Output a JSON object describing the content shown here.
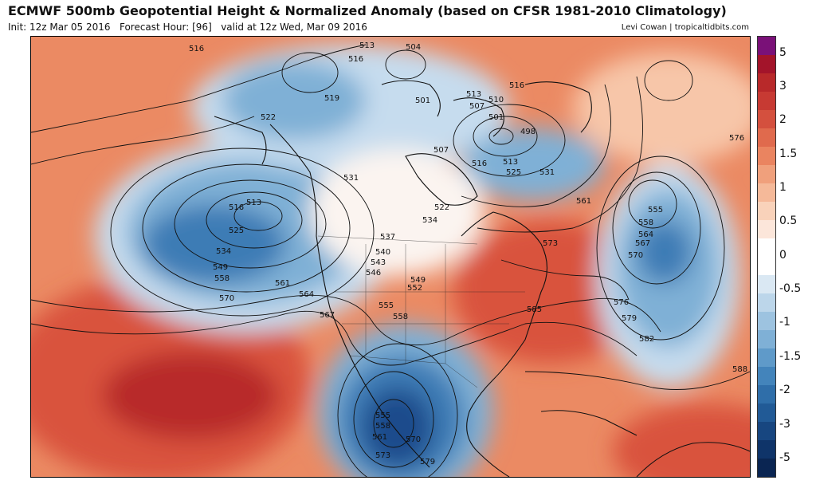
{
  "header": {
    "title": "ECMWF 500mb Geopotential Height & Normalized Anomaly (based on CFSR 1981-2010 Climatology)",
    "init": "Init: 12z Mar 05 2016",
    "forecast_hour": "Forecast Hour: [96]",
    "valid": "valid at 12z Wed, Mar 09 2016",
    "credit": "Levi Cowan | tropicaltidbits.com"
  },
  "colors": {
    "deep_red": "#b8292a",
    "red": "#d9533c",
    "orange": "#eb8a63",
    "light_orange": "#f7c6a9",
    "white": "#fbf4f0",
    "light_blue": "#c6dcee",
    "blue": "#7fb0d6",
    "mid_blue": "#3d7bb5",
    "deep_blue": "#1a4b8c"
  },
  "map": {
    "labels": [
      {
        "text": "516"
      },
      {
        "text": "513"
      },
      {
        "text": "504"
      },
      {
        "text": "516"
      },
      {
        "text": "519"
      },
      {
        "text": "522"
      },
      {
        "text": "501"
      },
      {
        "text": "513"
      },
      {
        "text": "507"
      },
      {
        "text": "510"
      },
      {
        "text": "516"
      },
      {
        "text": "501"
      },
      {
        "text": "498"
      },
      {
        "text": "507"
      },
      {
        "text": "513"
      },
      {
        "text": "516"
      },
      {
        "text": "525"
      },
      {
        "text": "531"
      },
      {
        "text": "531"
      },
      {
        "text": "513"
      },
      {
        "text": "516"
      },
      {
        "text": "525"
      },
      {
        "text": "534"
      },
      {
        "text": "549"
      },
      {
        "text": "558"
      },
      {
        "text": "561"
      },
      {
        "text": "564"
      },
      {
        "text": "567"
      },
      {
        "text": "570"
      },
      {
        "text": "522"
      },
      {
        "text": "534"
      },
      {
        "text": "537"
      },
      {
        "text": "540"
      },
      {
        "text": "543"
      },
      {
        "text": "546"
      },
      {
        "text": "549"
      },
      {
        "text": "552"
      },
      {
        "text": "555"
      },
      {
        "text": "558"
      },
      {
        "text": "561"
      },
      {
        "text": "573"
      },
      {
        "text": "555"
      },
      {
        "text": "558"
      },
      {
        "text": "564"
      },
      {
        "text": "567"
      },
      {
        "text": "570"
      },
      {
        "text": "576"
      },
      {
        "text": "579"
      },
      {
        "text": "582"
      },
      {
        "text": "585"
      },
      {
        "text": "576"
      },
      {
        "text": "588"
      },
      {
        "text": "555"
      },
      {
        "text": "558"
      },
      {
        "text": "561"
      },
      {
        "text": "570"
      },
      {
        "text": "573"
      },
      {
        "text": "579"
      }
    ]
  },
  "colorbar": {
    "segments": [
      {
        "color": "#7a1178"
      },
      {
        "color": "#a3142a"
      },
      {
        "color": "#b8292a"
      },
      {
        "color": "#c73a33"
      },
      {
        "color": "#d4503e"
      },
      {
        "color": "#e06a4d"
      },
      {
        "color": "#ea8460"
      },
      {
        "color": "#f0a07c"
      },
      {
        "color": "#f5b999"
      },
      {
        "color": "#f9d2ba"
      },
      {
        "color": "#fce6da"
      },
      {
        "color": "#ffffff"
      },
      {
        "color": "#ffffff"
      },
      {
        "color": "#dae8f3"
      },
      {
        "color": "#bcd6ea"
      },
      {
        "color": "#9dc3e0"
      },
      {
        "color": "#7fb0d6"
      },
      {
        "color": "#5f9ac9"
      },
      {
        "color": "#4384bb"
      },
      {
        "color": "#2f6ea9"
      },
      {
        "color": "#215a96"
      },
      {
        "color": "#174680"
      },
      {
        "color": "#0f3469"
      },
      {
        "color": "#0a2552"
      }
    ],
    "labels": [
      "5",
      "3",
      "2",
      "1.5",
      "1",
      "0.5",
      "0",
      "-0.5",
      "-1",
      "-1.5",
      "-2",
      "-3",
      "-5"
    ]
  }
}
